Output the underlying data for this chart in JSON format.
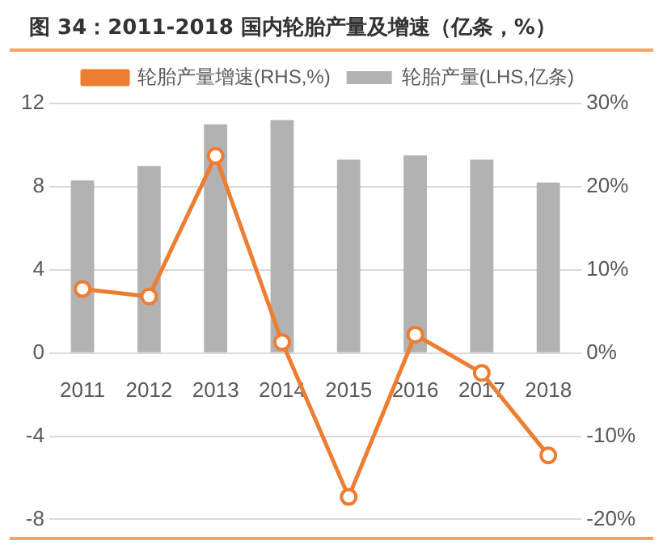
{
  "chart_data": {
    "type": "bar",
    "title": "图 34：2011-2018 国内轮胎产量及增速（亿条，%）",
    "categories": [
      "2011",
      "2012",
      "2013",
      "2014",
      "2015",
      "2016",
      "2017",
      "2018"
    ],
    "series": [
      {
        "name": "轮胎产量(LHS,亿条)",
        "color": "#b2b2b2",
        "values": [
          8.3,
          9.0,
          11.0,
          11.2,
          9.3,
          9.5,
          9.3,
          8.2
        ]
      },
      {
        "name": "轮胎产量增速(RHS,%)",
        "type": "line",
        "axis": "y2",
        "color": "#ed7d31",
        "marker": "circle",
        "values": [
          7.7,
          6.8,
          23.7,
          1.3,
          -17.3,
          2.2,
          -2.4,
          -12.3
        ]
      }
    ],
    "ylim": [
      -8,
      12
    ],
    "yticks": [
      -8,
      -4,
      0,
      4,
      8,
      12
    ],
    "y2lim": [
      -20,
      30
    ],
    "y2ticks": [
      {
        "value": -20,
        "label": "-20%"
      },
      {
        "value": -10,
        "label": "-10%"
      },
      {
        "value": 0,
        "label": "0%"
      },
      {
        "value": 10,
        "label": "10%"
      },
      {
        "value": 20,
        "label": "20%"
      },
      {
        "value": 30,
        "label": "30%"
      }
    ],
    "grid": "y",
    "legend": "top"
  }
}
